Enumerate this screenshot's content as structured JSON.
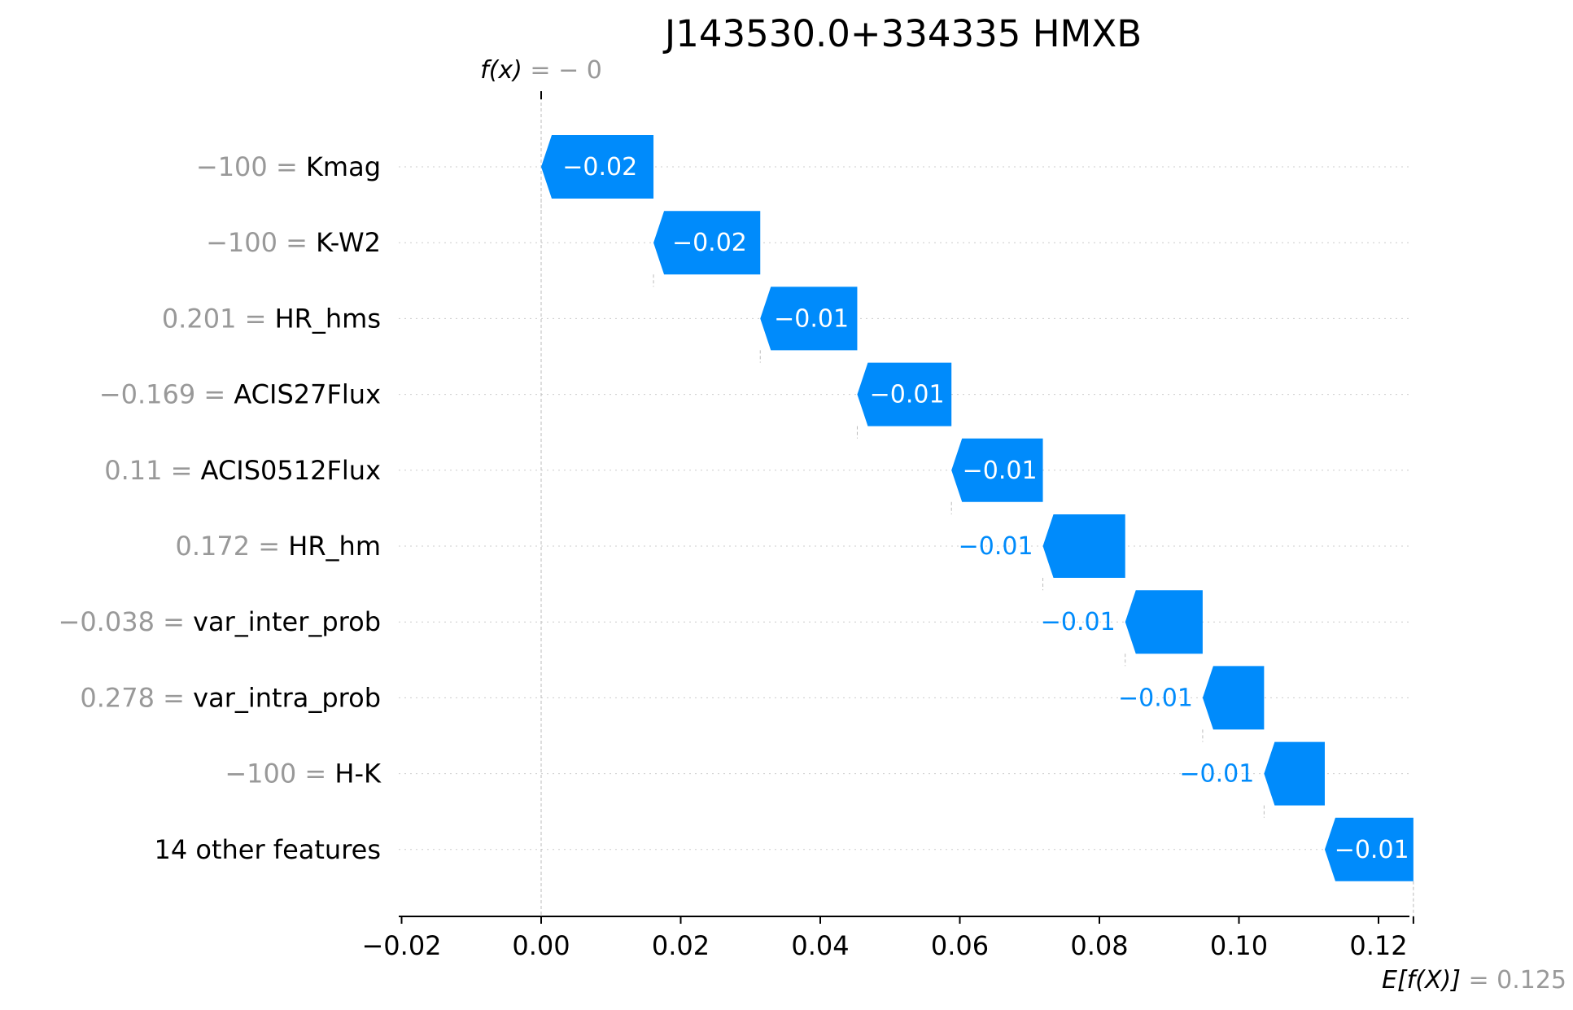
{
  "chart_data": {
    "type": "waterfall",
    "title": "J143530.0+334335 HMXB",
    "fx_label": "f(x)",
    "fx_value_text": "= − 0",
    "fx_value": 0.0,
    "base_label": "E[f(X)]",
    "base_value_text": "= 0.125",
    "base_value": 0.125,
    "xlim": [
      -0.02,
      0.125
    ],
    "xticks": [
      -0.02,
      0.0,
      0.02,
      0.04,
      0.06,
      0.08,
      0.1,
      0.12
    ],
    "xtick_labels": [
      "−0.02",
      "0.00",
      "0.02",
      "0.04",
      "0.06",
      "0.08",
      "0.10",
      "0.12"
    ],
    "grid": "horizontal dotted",
    "color_negative": "#008bfb",
    "features": [
      {
        "value_text": "−100",
        "name": "Kmag",
        "start": 0.0161,
        "end": 0.0,
        "label": "−0.02",
        "label_inside": true
      },
      {
        "value_text": "−100",
        "name": "K-W2",
        "start": 0.0314,
        "end": 0.0161,
        "label": "−0.02",
        "label_inside": true
      },
      {
        "value_text": "0.201",
        "name": "HR_hms",
        "start": 0.0453,
        "end": 0.0314,
        "label": "−0.01",
        "label_inside": true
      },
      {
        "value_text": "−0.169",
        "name": "ACIS27Flux",
        "start": 0.0588,
        "end": 0.0453,
        "label": "−0.01",
        "label_inside": true
      },
      {
        "value_text": "0.11",
        "name": "ACIS0512Flux",
        "start": 0.0719,
        "end": 0.0588,
        "label": "−0.01",
        "label_inside": true
      },
      {
        "value_text": "0.172",
        "name": "HR_hm",
        "start": 0.0837,
        "end": 0.0719,
        "label": "−0.01",
        "label_inside": false
      },
      {
        "value_text": "−0.038",
        "name": "var_inter_prob",
        "start": 0.0948,
        "end": 0.0837,
        "label": "−0.01",
        "label_inside": false
      },
      {
        "value_text": "0.278",
        "name": "var_intra_prob",
        "start": 0.1036,
        "end": 0.0948,
        "label": "−0.01",
        "label_inside": false
      },
      {
        "value_text": "−100",
        "name": "H-K",
        "start": 0.1123,
        "end": 0.1036,
        "label": "−0.01",
        "label_inside": false
      },
      {
        "value_text": "",
        "name": "14 other features",
        "start": 0.125,
        "end": 0.1123,
        "label": "−0.01",
        "label_inside": true
      }
    ]
  }
}
